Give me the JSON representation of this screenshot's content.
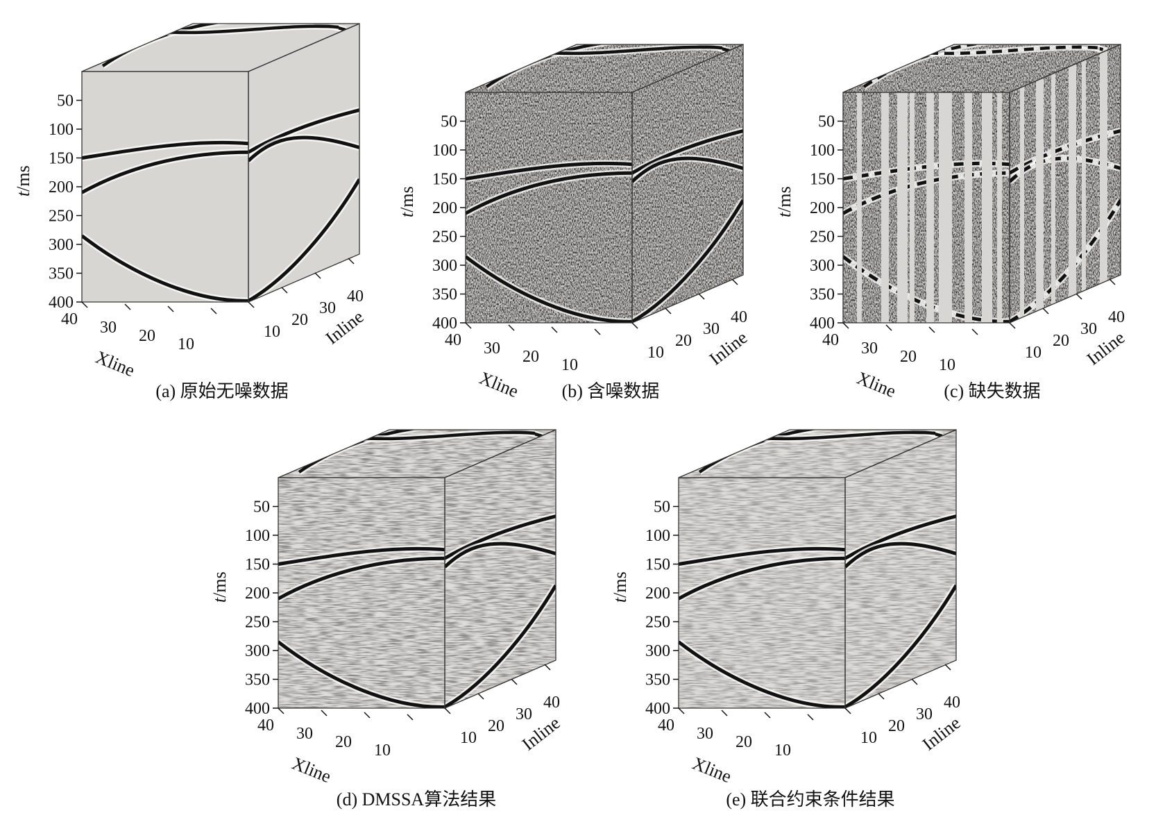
{
  "figure": {
    "panels": [
      {
        "id": "a",
        "caption": "(a) 原始无噪数据",
        "noise": 0,
        "missing": false,
        "smooth": false
      },
      {
        "id": "b",
        "caption": "(b) 含噪数据",
        "noise": 1,
        "missing": false,
        "smooth": false
      },
      {
        "id": "c",
        "caption": "(c) 缺失数据",
        "noise": 1,
        "missing": true,
        "smooth": false
      },
      {
        "id": "d",
        "caption": "(d) DMSSA算法结果",
        "noise": 0.45,
        "missing": false,
        "smooth": true
      },
      {
        "id": "e",
        "caption": "(e) 联合约束条件结果",
        "noise": 0.35,
        "missing": false,
        "smooth": true
      }
    ],
    "axes": {
      "t_label_italic": "t",
      "t_label_unit": "/ms",
      "t_ticks": [
        "50",
        "100",
        "150",
        "200",
        "250",
        "300",
        "350",
        "400"
      ],
      "xline_label": "Xline",
      "xline_ticks": [
        "40",
        "30",
        "20",
        "10"
      ],
      "inline_label": "Inline",
      "inline_ticks": [
        "10",
        "20",
        "30",
        "40"
      ]
    },
    "colors": {
      "clean_background": "#d8d6d3",
      "event": "#111111",
      "frame": "#333333"
    }
  }
}
